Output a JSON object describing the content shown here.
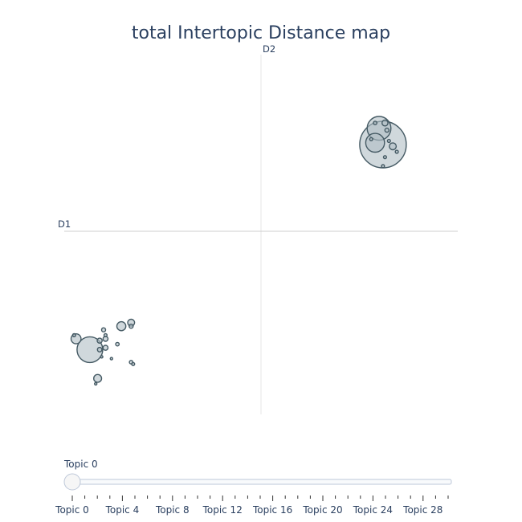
{
  "chart_data": {
    "type": "scatter",
    "title": "total Intertopic Distance map",
    "x_axis_label": "D1",
    "y_axis_label": "D2",
    "xlim": [
      -10,
      10
    ],
    "ylim": [
      -10,
      10
    ],
    "bubbles": [
      {
        "x": 6.2,
        "y": 5.0,
        "size": 4.7
      },
      {
        "x": 6.0,
        "y": 5.9,
        "size": 2.4
      },
      {
        "x": 5.8,
        "y": 5.1,
        "size": 1.9
      },
      {
        "x": 6.7,
        "y": 4.9,
        "size": 0.7
      },
      {
        "x": 6.3,
        "y": 6.2,
        "size": 0.6
      },
      {
        "x": 6.4,
        "y": 5.8,
        "size": 0.4
      },
      {
        "x": 5.8,
        "y": 6.2,
        "size": 0.35
      },
      {
        "x": 6.9,
        "y": 4.6,
        "size": 0.3
      },
      {
        "x": 6.3,
        "y": 4.3,
        "size": 0.3
      },
      {
        "x": 6.2,
        "y": 3.8,
        "size": 0.3
      },
      {
        "x": 5.6,
        "y": 5.3,
        "size": 0.3
      },
      {
        "x": 6.5,
        "y": 5.2,
        "size": 0.3
      },
      {
        "x": -8.7,
        "y": -6.4,
        "size": 2.6
      },
      {
        "x": -9.4,
        "y": -5.8,
        "size": 1.0
      },
      {
        "x": -7.1,
        "y": -5.1,
        "size": 0.9
      },
      {
        "x": -6.6,
        "y": -4.9,
        "size": 0.7
      },
      {
        "x": -8.3,
        "y": -8.0,
        "size": 0.8
      },
      {
        "x": -8.2,
        "y": -5.9,
        "size": 0.5
      },
      {
        "x": -7.9,
        "y": -5.8,
        "size": 0.5
      },
      {
        "x": -7.9,
        "y": -6.3,
        "size": 0.5
      },
      {
        "x": -8.2,
        "y": -6.4,
        "size": 0.45
      },
      {
        "x": -8.0,
        "y": -5.3,
        "size": 0.4
      },
      {
        "x": -6.6,
        "y": -5.1,
        "size": 0.4
      },
      {
        "x": -7.3,
        "y": -6.1,
        "size": 0.35
      },
      {
        "x": -6.6,
        "y": -7.1,
        "size": 0.35
      },
      {
        "x": -7.9,
        "y": -5.6,
        "size": 0.3
      },
      {
        "x": -9.5,
        "y": -5.6,
        "size": 0.3
      },
      {
        "x": -6.5,
        "y": -7.2,
        "size": 0.3
      },
      {
        "x": -8.4,
        "y": -8.3,
        "size": 0.25
      },
      {
        "x": -8.1,
        "y": -6.8,
        "size": 0.25
      },
      {
        "x": -7.6,
        "y": -6.9,
        "size": 0.2
      }
    ],
    "slider": {
      "current_label": "Topic 0",
      "value": 0,
      "min": 0,
      "max": 30,
      "tick_labels": [
        "Topic 0",
        "Topic 4",
        "Topic 8",
        "Topic 12",
        "Topic 16",
        "Topic 20",
        "Topic 24",
        "Topic 28"
      ]
    }
  }
}
